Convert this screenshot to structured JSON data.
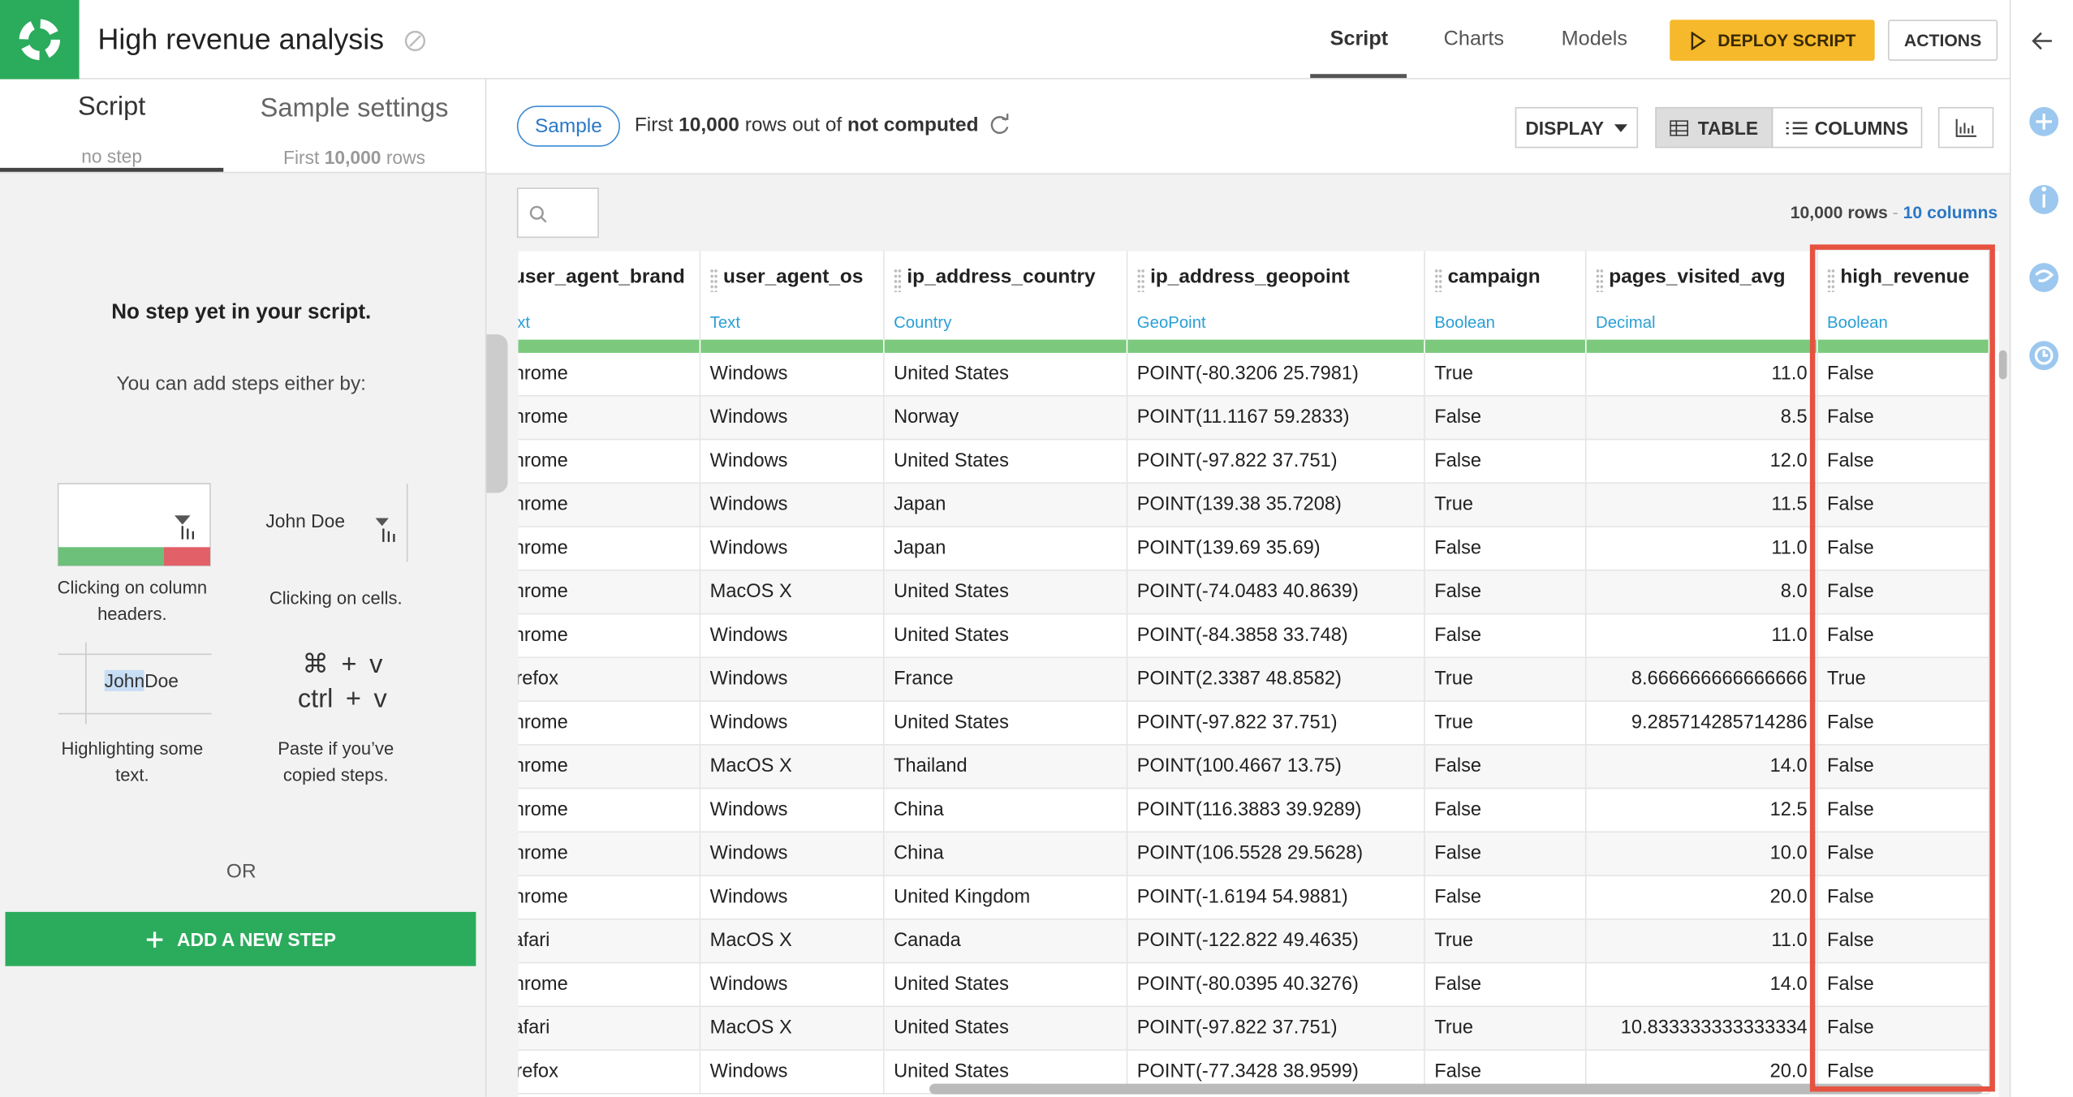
{
  "header": {
    "title": "High revenue analysis",
    "tabs": [
      "Script",
      "Charts",
      "Models"
    ],
    "deploy_button": "DEPLOY SCRIPT",
    "actions_button": "ACTIONS"
  },
  "left_panel": {
    "tabs": [
      {
        "label": "Script",
        "detail": "no step"
      },
      {
        "label": "Sample settings",
        "detail_prefix": "First",
        "detail_count": "10,000",
        "detail_suffix": "rows"
      }
    ],
    "empty_state": {
      "heading": "No step yet in your script.",
      "intro": "You can add steps either by:",
      "options": [
        {
          "caption": "Clicking on column headers."
        },
        {
          "example": "John Doe",
          "caption": "Clicking on cells."
        },
        {
          "example_highlighted": "John",
          "example_rest": "Doe",
          "caption": "Highlighting some text."
        },
        {
          "keys": [
            [
              "⌘",
              "+",
              "v"
            ],
            [
              "ctrl",
              "+",
              "v"
            ]
          ],
          "caption": "Paste if you’ve copied steps."
        }
      ],
      "separator": "OR",
      "add_button": "ADD A NEW STEP"
    }
  },
  "toolbar": {
    "sample_badge": "Sample",
    "summary": {
      "prefix": "First",
      "count": "10,000",
      "middle": "rows out of",
      "status": "not computed"
    },
    "display_button": "DISPLAY",
    "view_toggle": [
      "TABLE",
      "COLUMNS"
    ]
  },
  "table": {
    "row_count": "10,000 rows",
    "separator": "-",
    "column_count": "10 columns",
    "columns": [
      {
        "name": "user_agent_brand",
        "type": "Text"
      },
      {
        "name": "user_agent_os",
        "type": "Text"
      },
      {
        "name": "ip_address_country",
        "type": "Country"
      },
      {
        "name": "ip_address_geopoint",
        "type": "GeoPoint"
      },
      {
        "name": "campaign",
        "type": "Boolean"
      },
      {
        "name": "pages_visited_avg",
        "type": "Decimal"
      },
      {
        "name": "high_revenue",
        "type": "Boolean"
      }
    ],
    "rows": [
      [
        "Chrome",
        "Windows",
        "United States",
        "POINT(-80.3206 25.7981)",
        "True",
        "11.0",
        "False"
      ],
      [
        "Chrome",
        "Windows",
        "Norway",
        "POINT(11.1167 59.2833)",
        "False",
        "8.5",
        "False"
      ],
      [
        "Chrome",
        "Windows",
        "United States",
        "POINT(-97.822 37.751)",
        "False",
        "12.0",
        "False"
      ],
      [
        "Chrome",
        "Windows",
        "Japan",
        "POINT(139.38 35.7208)",
        "True",
        "11.5",
        "False"
      ],
      [
        "Chrome",
        "Windows",
        "Japan",
        "POINT(139.69 35.69)",
        "False",
        "11.0",
        "False"
      ],
      [
        "Chrome",
        "MacOS X",
        "United States",
        "POINT(-74.0483 40.8639)",
        "False",
        "8.0",
        "False"
      ],
      [
        "Chrome",
        "Windows",
        "United States",
        "POINT(-84.3858 33.748)",
        "False",
        "11.0",
        "False"
      ],
      [
        "Firefox",
        "Windows",
        "France",
        "POINT(2.3387 48.8582)",
        "True",
        "8.666666666666666",
        "True"
      ],
      [
        "Chrome",
        "Windows",
        "United States",
        "POINT(-97.822 37.751)",
        "True",
        "9.285714285714286",
        "False"
      ],
      [
        "Chrome",
        "MacOS X",
        "Thailand",
        "POINT(100.4667 13.75)",
        "False",
        "14.0",
        "False"
      ],
      [
        "Chrome",
        "Windows",
        "China",
        "POINT(116.3883 39.9289)",
        "False",
        "12.5",
        "False"
      ],
      [
        "Chrome",
        "Windows",
        "China",
        "POINT(106.5528 29.5628)",
        "False",
        "10.0",
        "False"
      ],
      [
        "Chrome",
        "Windows",
        "United Kingdom",
        "POINT(-1.6194 54.9881)",
        "False",
        "20.0",
        "False"
      ],
      [
        "Safari",
        "MacOS X",
        "Canada",
        "POINT(-122.822 49.4635)",
        "True",
        "11.0",
        "False"
      ],
      [
        "Chrome",
        "Windows",
        "United States",
        "POINT(-80.0395 40.3276)",
        "False",
        "14.0",
        "False"
      ],
      [
        "Safari",
        "MacOS X",
        "United States",
        "POINT(-97.822 37.751)",
        "True",
        "10.833333333333334",
        "False"
      ],
      [
        "Firefox",
        "Windows",
        "United States",
        "POINT(-77.3428 38.9599)",
        "False",
        "20.0",
        "False"
      ]
    ]
  }
}
